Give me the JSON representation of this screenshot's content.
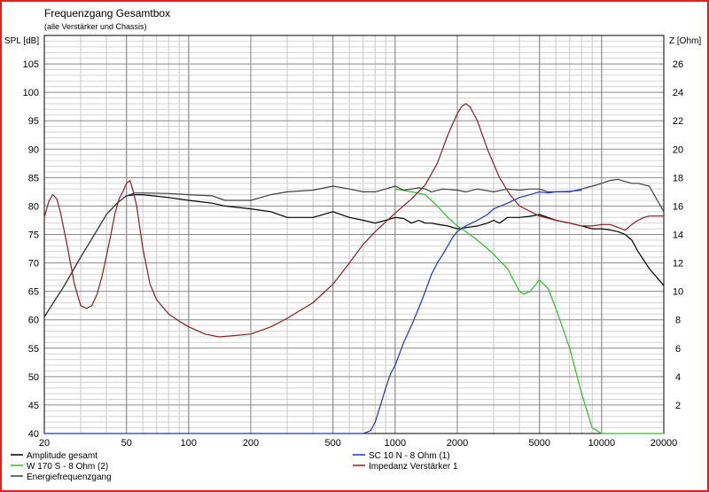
{
  "chart_data": {
    "type": "line",
    "title": "Frequenzgang Gesamtbox",
    "subtitle": "(alle Verstärker und Chassis)",
    "ylabel_left": "SPL [dB]",
    "ylabel_right": "Z [Ohm]",
    "x_scale": "log",
    "xlim": [
      20,
      20000
    ],
    "ylim_left": [
      40,
      110
    ],
    "ylim_right": [
      0,
      28
    ],
    "x_ticks": [
      "20",
      "50",
      "100",
      "200",
      "500",
      "1000",
      "2000",
      "5000",
      "10000",
      "20000"
    ],
    "y_ticks_left": [
      "40",
      "45",
      "50",
      "55",
      "60",
      "65",
      "70",
      "75",
      "80",
      "85",
      "90",
      "95",
      "100",
      "105"
    ],
    "y_ticks_right": [
      "2",
      "4",
      "6",
      "8",
      "10",
      "12",
      "14",
      "16",
      "18",
      "20",
      "22",
      "24",
      "26"
    ],
    "grid": true,
    "legend_placement": "bottom",
    "series": [
      {
        "name": "Amplitude gesamt",
        "axis": "left",
        "color": "#000000",
        "x": [
          20,
          25,
          30,
          35,
          40,
          45,
          50,
          55,
          60,
          80,
          100,
          130,
          150,
          200,
          250,
          300,
          400,
          500,
          600,
          700,
          800,
          900,
          1000,
          1100,
          1200,
          1300,
          1400,
          1500,
          1600,
          1800,
          2000,
          2200,
          2500,
          2800,
          3000,
          3200,
          3500,
          4000,
          4500,
          5000,
          5500,
          6000,
          7000,
          8000,
          9000,
          10000,
          11000,
          12000,
          13000,
          14000,
          15000,
          17000,
          20000
        ],
        "y": [
          60.5,
          66,
          71,
          75,
          78.5,
          80.5,
          81.8,
          82,
          82,
          81.5,
          81,
          80.5,
          80,
          79.5,
          79,
          78,
          78,
          79,
          78,
          77.5,
          77,
          77.5,
          78,
          77.8,
          77,
          77.5,
          77,
          77,
          76.8,
          76.5,
          76,
          76.2,
          76.5,
          77,
          77.5,
          77,
          78,
          78,
          78.2,
          78.5,
          78,
          77.5,
          77,
          76.5,
          76,
          76,
          75.8,
          75.5,
          75,
          74,
          72,
          69,
          66
        ]
      },
      {
        "name": "W 170 S - 8 Ohm (2)",
        "axis": "left",
        "color": "#2ac02a",
        "x": [
          1000,
          1200,
          1400,
          1600,
          1800,
          2000,
          2200,
          2500,
          2800,
          3000,
          3500,
          4000,
          4200,
          4500,
          5000,
          5500,
          6000,
          7000,
          8000,
          9000,
          10000,
          12000,
          15000,
          20000
        ],
        "y": [
          83,
          82.5,
          82,
          80,
          78,
          76.5,
          75.5,
          74,
          72.5,
          71.5,
          69,
          65,
          64.5,
          65,
          67,
          65.5,
          62,
          55,
          47,
          41,
          40,
          40,
          40,
          40
        ]
      },
      {
        "name": "Energiefrequenzgang",
        "axis": "left",
        "color": "#404040",
        "x": [
          20,
          25,
          30,
          35,
          40,
          45,
          50,
          55,
          60,
          80,
          100,
          130,
          150,
          200,
          250,
          300,
          400,
          500,
          600,
          700,
          800,
          900,
          1000,
          1100,
          1200,
          1300,
          1400,
          1500,
          1700,
          2000,
          2200,
          2500,
          3000,
          3500,
          4000,
          4500,
          5000,
          5500,
          6000,
          7000,
          8000,
          9000,
          10000,
          11000,
          12000,
          13000,
          14000,
          15000,
          17000,
          20000
        ],
        "y": [
          60.5,
          66,
          71,
          75,
          78.5,
          80.5,
          81.8,
          82.3,
          82.3,
          82.2,
          82,
          81.8,
          81,
          81,
          82,
          82.5,
          82.8,
          83.5,
          83,
          82.5,
          82.5,
          83,
          83.5,
          82.8,
          83,
          83.2,
          83,
          82.5,
          83,
          82.8,
          82.5,
          83,
          82.5,
          83,
          82.8,
          83,
          83,
          82.5,
          82.5,
          82.5,
          83,
          83.5,
          84,
          84.5,
          84.7,
          84.3,
          84,
          84,
          83.5,
          79
        ]
      },
      {
        "name": "SC 10 N - 8 Ohm (1)",
        "axis": "left",
        "color": "#2233cc",
        "x": [
          20,
          600,
          700,
          760,
          800,
          850,
          900,
          950,
          1000,
          1100,
          1200,
          1300,
          1400,
          1500,
          1600,
          1700,
          1800,
          1900,
          2000,
          2200,
          2500,
          2800,
          3000,
          3500,
          4000,
          4500,
          5000,
          5500,
          6000,
          7000,
          8000
        ],
        "y": [
          40,
          40,
          40,
          40.5,
          42,
          45,
          48,
          50.5,
          52,
          56,
          59,
          62,
          65,
          68,
          70,
          71.5,
          73,
          74.5,
          75.5,
          76.5,
          77.5,
          78.5,
          79.5,
          80.5,
          81.5,
          82,
          82.5,
          82.3,
          82.5,
          82.6,
          82.8
        ]
      },
      {
        "name": "Impedanz Verstärker 1",
        "axis": "right",
        "color": "#8b2020",
        "x": [
          20,
          21,
          22,
          23,
          24,
          26,
          28,
          30,
          32,
          34,
          36,
          38,
          40,
          42,
          44,
          46,
          48,
          50,
          52,
          54,
          56,
          58,
          60,
          65,
          70,
          80,
          90,
          100,
          120,
          140,
          170,
          200,
          250,
          300,
          400,
          500,
          600,
          700,
          800,
          1000,
          1200,
          1400,
          1600,
          1800,
          2000,
          2100,
          2200,
          2300,
          2500,
          2800,
          3200,
          3600,
          4000,
          5000,
          6000,
          7000,
          8000,
          9000,
          10000,
          11000,
          12000,
          13000,
          14000,
          15000,
          16000,
          17000,
          18000,
          20000
        ],
        "y": [
          15.2,
          16.3,
          16.8,
          16.5,
          15.5,
          13,
          10.5,
          9,
          8.8,
          9,
          9.8,
          11,
          12.5,
          14,
          15.5,
          16.5,
          17,
          17.6,
          17.8,
          17,
          16,
          14.5,
          13,
          10.5,
          9.4,
          8.4,
          7.9,
          7.5,
          7,
          6.8,
          6.9,
          7,
          7.5,
          8.1,
          9.2,
          10.5,
          12,
          13.3,
          14.2,
          15.5,
          16.5,
          17.5,
          19,
          21,
          22.5,
          23,
          23.2,
          23,
          22,
          20,
          18,
          16.8,
          16,
          15.3,
          15,
          14.8,
          14.6,
          14.6,
          14.7,
          14.7,
          14.5,
          14.3,
          14.7,
          15,
          15.2,
          15.3,
          15.3,
          15.3
        ]
      }
    ]
  }
}
